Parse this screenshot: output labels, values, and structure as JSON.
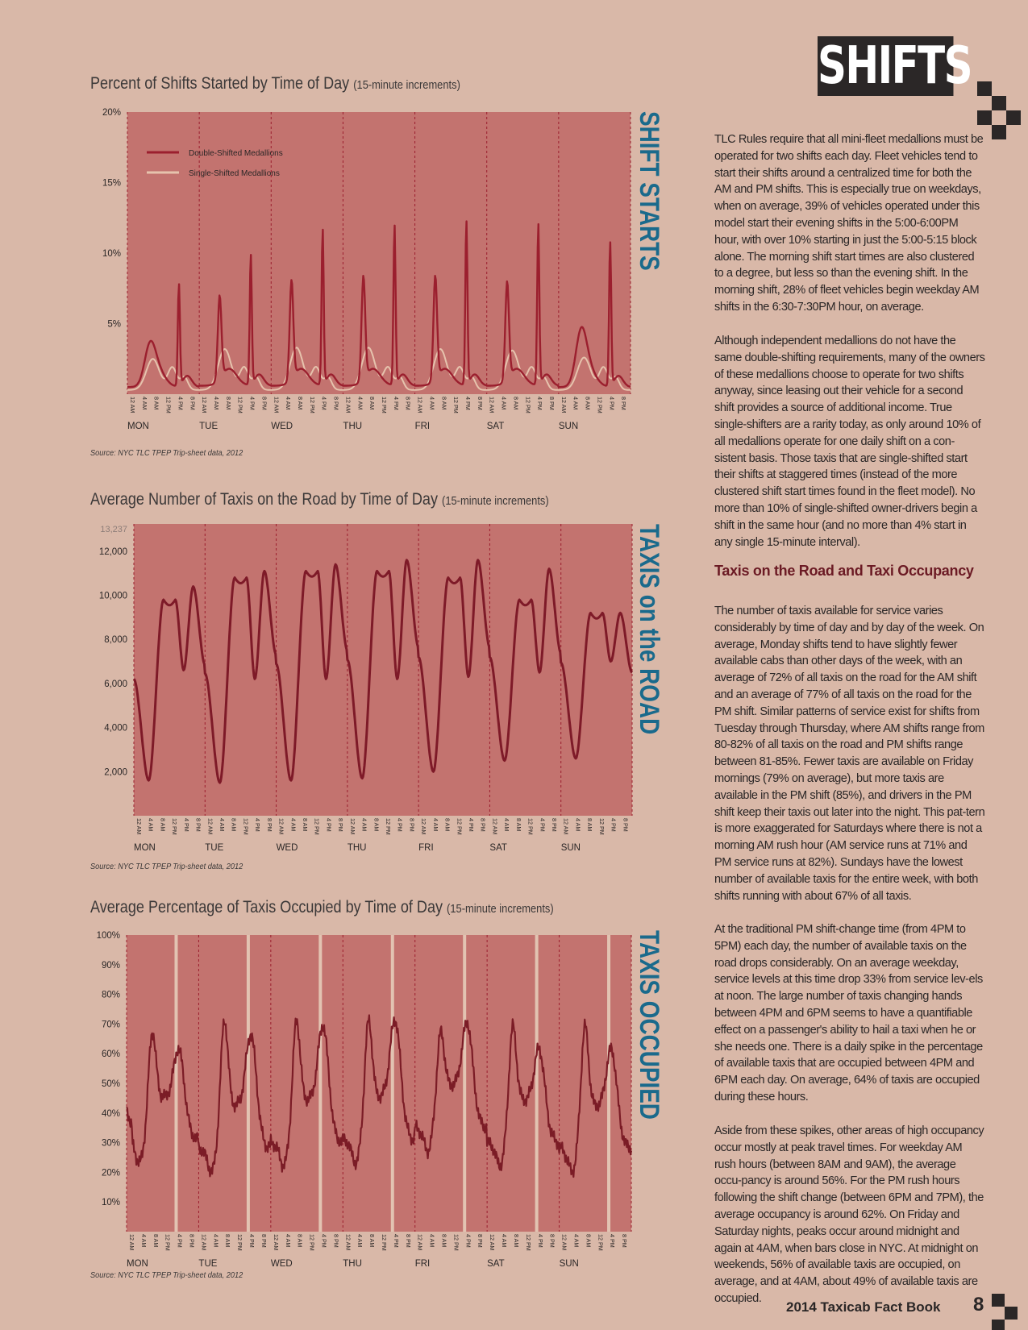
{
  "header": {
    "title": "SHIFTS"
  },
  "colors": {
    "page_bg": "#d9b8a8",
    "plot_bg": "#c3736f",
    "double_line": "#9b1f2e",
    "single_line": "#e6c3ad",
    "road_line": "#7e1a28",
    "occupied_line": "#7b1c26",
    "accent_blue": "#1a6a8c",
    "heading_red": "#6b1a24"
  },
  "axis_days": [
    "MON",
    "TUE",
    "WED",
    "THU",
    "FRI",
    "SAT",
    "SUN"
  ],
  "axis_hours": [
    "12 AM",
    "4 AM",
    "8 AM",
    "12 PM",
    "4 PM",
    "8 PM"
  ],
  "chart_data": [
    {
      "type": "line",
      "title": "Percent of Shifts Started by Time of Day",
      "subtitle": "(15-minute increments)",
      "side_label": "SHIFT STARTS",
      "ylim": [
        0,
        20
      ],
      "yticks": [
        "20%",
        "15%",
        "10%",
        "5%"
      ],
      "ytick_values": [
        20,
        15,
        10,
        5
      ],
      "x": "days Monday–Sunday, 15-minute increments",
      "legend_position": "top-left",
      "series": [
        {
          "name": "Double-Shifted Medallions",
          "daily_peak_pm": [
            7.2,
            9.2,
            11.0,
            11.3,
            11.6,
            11.4,
            10.2
          ],
          "daily_peak_am": [
            3.0,
            6.5,
            7.6,
            7.9,
            7.9,
            7.5,
            4.0
          ],
          "daily_min": [
            0.5,
            0.6,
            0.6,
            0.6,
            0.6,
            0.6,
            0.5
          ]
        },
        {
          "name": "Single-Shifted Medallions",
          "daily_peak": [
            2.5,
            3.2,
            3.3,
            3.3,
            3.2,
            3.1,
            2.6
          ],
          "daily_min": [
            0.3,
            0.3,
            0.3,
            0.3,
            0.3,
            0.3,
            0.3
          ]
        }
      ],
      "source": "Source: NYC TLC TPEP Trip-sheet data, 2012"
    },
    {
      "type": "line",
      "title": "Average Number of Taxis on the Road by Time of Day",
      "subtitle": "(15-minute increments)",
      "side_label": "TAXIS on the ROAD",
      "ylim": [
        0,
        13237
      ],
      "top_label": "13,237",
      "yticks": [
        "12,000",
        "10,000",
        "8,000",
        "6,000",
        "4,000",
        "2,000"
      ],
      "ytick_values": [
        12000,
        10000,
        8000,
        6000,
        4000,
        2000
      ],
      "series": [
        {
          "name": "",
          "start_value": 6200,
          "daily_min": [
            1600,
            1500,
            1600,
            1700,
            2000,
            2500,
            2600
          ],
          "daily_am_peak": [
            9800,
            10800,
            11100,
            11100,
            10800,
            9800,
            9200
          ],
          "daily_shift_dip": [
            6600,
            6200,
            6200,
            6200,
            6300,
            6500,
            7000
          ],
          "daily_pm_peak": [
            10400,
            11100,
            11400,
            11600,
            11600,
            11200,
            9200
          ],
          "end_value": 6200
        }
      ],
      "source": "Source: NYC TLC TPEP Trip-sheet data, 2012"
    },
    {
      "type": "line",
      "title": "Average Percentage of Taxis Occupied by Time of Day",
      "subtitle": "(15-minute increments)",
      "side_label": "TAXIS OCCUPIED",
      "ylim": [
        0,
        100
      ],
      "yticks": [
        "100%",
        "90%",
        "80%",
        "70%",
        "60%",
        "50%",
        "40%",
        "30%",
        "20%",
        "10%"
      ],
      "ytick_values": [
        100,
        90,
        80,
        70,
        60,
        50,
        40,
        30,
        20,
        10
      ],
      "series": [
        {
          "name": "",
          "start_value": 42,
          "daily_low": [
            31,
            28,
            30,
            31,
            35,
            30,
            28
          ],
          "daily_am_peak": [
            58,
            62,
            62,
            62,
            58,
            60,
            60
          ],
          "daily_pm_peak": [
            62,
            67,
            70,
            72,
            71,
            62,
            62
          ],
          "end_value": 41
        }
      ],
      "source": "Source: NYC TLC TPEP Trip-sheet data, 2012"
    }
  ],
  "body": {
    "p1": "TLC Rules require that all mini-fleet medallions must be operated for two shifts each day.  Fleet vehicles tend to start their shifts around a centralized time for both the AM and PM shifts.  This is especially true on weekdays, when on average, 39% of vehicles operated under this model start their evening shifts in the 5:00-6:00PM hour, with over 10% starting in just the 5:00-5:15 block alone.  The morning shift start times are also clustered to a degree, but less so than the evening shift.  In the morning shift, 28% of fleet vehicles begin weekday AM shifts in the 6:30-7:30PM hour, on average.",
    "p2": "Although independent medallions do not have the same double-shifting requirements, many of the owners of these medallions choose to operate for two shifts anyway, since leasing out their vehicle for a second shift provides a source of additional income. True single-shifters are a rarity today, as only around 10% of all medallions operate for one daily shift on a con-sistent basis.  Those taxis that are single-shifted start their shifts at staggered times (instead of the more clustered shift start times found in the fleet model). No more than 10% of single-shifted owner-drivers begin a shift in the same hour (and no more than 4% start in any single 15-minute interval).",
    "heading": "Taxis on the Road and Taxi Occupancy",
    "p3": "The number of taxis available for service varies considerably by time of day and by day of the week. On average, Monday shifts tend to have slightly fewer available cabs than other days of the week, with an average of 72% of all taxis on the road for the AM shift and an average of 77% of all taxis on the road for the PM shift.  Similar patterns of service exist for shifts from Tuesday through Thursday, where AM shifts range from 80-82% of all taxis on the road and PM shifts range between 81-85%.  Fewer taxis are available on Friday mornings (79% on average), but more taxis are available in the PM shift (85%), and drivers in the PM shift keep their taxis out later into the night.  This pat-tern is more exaggerated for Saturdays where there is not a morning AM rush hour (AM service runs at 71% and PM service runs at 82%).  Sundays have the lowest number of available taxis for the entire week, with both shifts running with about 67% of all taxis.",
    "p4": "At the traditional PM shift-change time (from 4PM to 5PM) each day, the number of available taxis on the road drops considerably.  On an average weekday, service levels at this time drop 33% from service lev-els at noon. The large number of taxis changing hands between 4PM and 6PM seems to have a quantifiable effect on a passenger's ability to hail a taxi when he or she needs one.  There is a daily spike in the percentage of available taxis that are occupied between 4PM and 6PM each day.  On average, 64% of taxis are occupied during these hours.",
    "p5": "Aside from these spikes, other areas of high occupancy occur mostly at peak travel times.  For weekday AM rush hours (between 8AM and 9AM), the average occu-pancy is around 56%.  For the PM rush hours following the shift change (between 6PM and 7PM), the average occupancy is around 62%.  On Friday and Saturday nights, peaks occur around midnight and again at 4AM, when bars close in NYC.  At midnight on weekends, 56% of available taxis are occupied, on average, and at 4AM, about 49% of available taxis are occupied."
  },
  "footer": {
    "text": "2014 Taxicab Fact Book",
    "page": "8"
  }
}
